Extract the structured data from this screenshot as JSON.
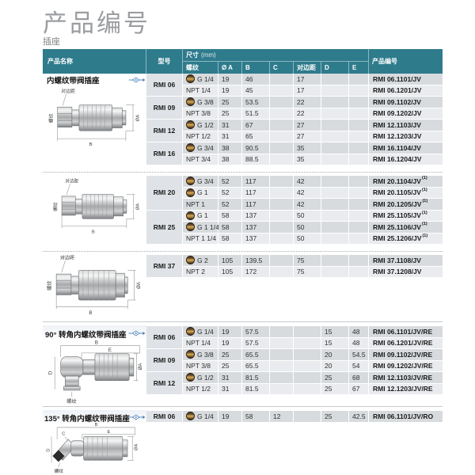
{
  "page": {
    "title": "产品编号",
    "subtitle": "插座"
  },
  "colors": {
    "header_teal": "#2e7b8c",
    "accent_blue": "#4a7fb5",
    "row_dark": "#d7dbde",
    "row_light": "#e9ebee",
    "thread_badge_gold": "#d8a855"
  },
  "table_headers": {
    "product_name": "产品名称",
    "model": "型号",
    "size_label": "尺寸",
    "size_unit": "(mm)",
    "thread": "螺纹",
    "dia_a": "Ø A",
    "b": "B",
    "c": "C",
    "across_flats": "对边距",
    "d": "D",
    "e": "E",
    "product_code": "产品编号"
  },
  "sections": [
    {
      "title": "内螺纹带阀插座",
      "icon": "coupling-symbol-icon"
    },
    {
      "title": "90° 转角内螺纹带阀插座",
      "icon": "coupling-symbol-icon"
    },
    {
      "title": "135° 转角内螺纹带阀插座",
      "icon": "coupling-symbol-icon"
    }
  ],
  "drawing_labels": {
    "straight": {
      "flats": "对边距",
      "thread": "螺纹",
      "dia": "ØA",
      "b": "B"
    },
    "elbow90": {
      "b": "B",
      "e": "E",
      "d": "D",
      "dia": "ØA",
      "thread": "螺纹"
    },
    "elbow135": {
      "b": "B",
      "e": "E",
      "c": "C",
      "d": "D",
      "dia": "ØA",
      "thread": "螺纹"
    }
  },
  "blocks": [
    {
      "rows": [
        {
          "model": "RMI 06",
          "span": 2,
          "g": true,
          "thread": "G 1/4",
          "a": "19",
          "b": "46",
          "flats": "17",
          "code": "RMI 06.1101/JV"
        },
        {
          "g": false,
          "thread": "NPT 1/4",
          "a": "19",
          "b": "45",
          "flats": "17",
          "code": "RMI 06.1201/JV"
        },
        {
          "model": "RMI 09",
          "span": 2,
          "g": true,
          "thread": "G 3/8",
          "a": "25",
          "b": "53.5",
          "flats": "22",
          "code": "RMI 09.1102/JV"
        },
        {
          "g": false,
          "thread": "NPT 3/8",
          "a": "25",
          "b": "51.5",
          "flats": "22",
          "code": "RMI 09.1202/JV"
        },
        {
          "model": "RMI 12",
          "span": 2,
          "g": true,
          "thread": "G 1/2",
          "a": "31",
          "b": "67",
          "flats": "27",
          "code": "RMI 12.1103/JV"
        },
        {
          "g": false,
          "thread": "NPT 1/2",
          "a": "31",
          "b": "65",
          "flats": "27",
          "code": "RMI 12.1203/JV"
        },
        {
          "model": "RMI 16",
          "span": 2,
          "g": true,
          "thread": "G 3/4",
          "a": "38",
          "b": "90.5",
          "flats": "35",
          "code": "RMI 16.1104/JV"
        },
        {
          "g": false,
          "thread": "NPT 3/4",
          "a": "38",
          "b": "88.5",
          "flats": "35",
          "code": "RMI 16.1204/JV"
        }
      ]
    },
    {
      "rows": [
        {
          "model": "RMI 20",
          "span": 3,
          "g": true,
          "thread": "G 3/4",
          "a": "52",
          "b": "117",
          "flats": "42",
          "code": "RMI 20.1104/JV",
          "sup": "(1)"
        },
        {
          "g": true,
          "thread": "G 1",
          "a": "52",
          "b": "117",
          "flats": "42",
          "code": "RMI 20.1105/JV",
          "sup": "(1)"
        },
        {
          "g": false,
          "thread": "NPT 1",
          "a": "52",
          "b": "117",
          "flats": "42",
          "code": "RMI 20.1205/JV",
          "sup": "(1)"
        },
        {
          "model": "RMI 25",
          "span": 3,
          "g": true,
          "thread": "G 1",
          "a": "58",
          "b": "137",
          "flats": "50",
          "code": "RMI 25.1105/JV",
          "sup": "(1)"
        },
        {
          "g": true,
          "thread": "G 1 1/4",
          "a": "58",
          "b": "137",
          "flats": "50",
          "code": "RMI 25.1106/JV",
          "sup": "(1)"
        },
        {
          "g": false,
          "thread": "NPT 1 1/4",
          "a": "58",
          "b": "137",
          "flats": "50",
          "code": "RMI 25.1206/JV",
          "sup": "(1)"
        }
      ]
    },
    {
      "rows": [
        {
          "model": "RMI 37",
          "span": 2,
          "g": true,
          "thread": "G 2",
          "a": "105",
          "b": "139.5",
          "flats": "75",
          "code": "RMI 37.1108/JV"
        },
        {
          "g": false,
          "thread": "NPT 2",
          "a": "105",
          "b": "172",
          "flats": "75",
          "code": "RMI 37.1208/JV"
        }
      ]
    },
    {
      "rows": [
        {
          "model": "RMI 06",
          "span": 2,
          "g": true,
          "thread": "G 1/4",
          "a": "19",
          "b": "57.5",
          "d": "15",
          "e": "48",
          "code": "RMI 06.1101/JV/RE"
        },
        {
          "g": false,
          "thread": "NPT 1/4",
          "a": "19",
          "b": "57.5",
          "d": "15",
          "e": "48",
          "code": "RMI 06.1201/JV/RE"
        },
        {
          "model": "RMI 09",
          "span": 2,
          "g": true,
          "thread": "G 3/8",
          "a": "25",
          "b": "65.5",
          "d": "20",
          "e": "54.5",
          "code": "RMI 09.1102/JV/RE"
        },
        {
          "g": false,
          "thread": "NPT 3/8",
          "a": "25",
          "b": "65.5",
          "d": "20",
          "e": "54",
          "code": "RMI 09.1202/JV/RE"
        },
        {
          "model": "RMI 12",
          "span": 2,
          "g": true,
          "thread": "G 1/2",
          "a": "31",
          "b": "81.5",
          "d": "25",
          "e": "68",
          "code": "RMI 12.1103/JV/RE"
        },
        {
          "g": false,
          "thread": "NPT 1/2",
          "a": "31",
          "b": "81.5",
          "d": "25",
          "e": "67",
          "code": "RMI 12.1203/JV/RE"
        }
      ]
    },
    {
      "rows": [
        {
          "model": "RMI 06",
          "span": 1,
          "g": true,
          "thread": "G 1/4",
          "a": "19",
          "b": "58",
          "c": "12",
          "d": "25",
          "e": "42.5",
          "code": "RMI 06.1101/JV/RO"
        }
      ]
    }
  ]
}
